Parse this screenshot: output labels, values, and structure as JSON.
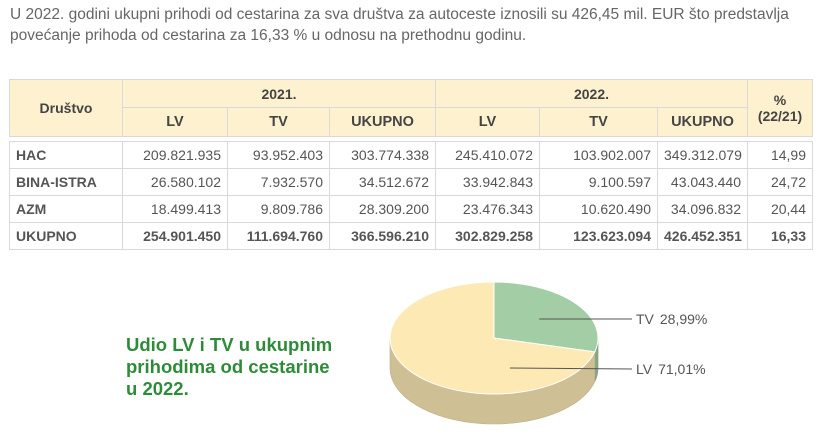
{
  "intro": {
    "line1": "U 2022. godini ukupni prihodi od cestarina za sva društva za autoceste iznosili su 426,45 mil. EUR što predstavlja",
    "line2": "povećanje prihoda od cestarina za 16,33 % u odnosu na prethodnu godinu."
  },
  "table": {
    "firm_header": "Društvo",
    "year_2021": "2021.",
    "year_2022": "2022.",
    "pct_header_line1": "%",
    "pct_header_line2": "(22/21)",
    "sub_headers": [
      "LV",
      "TV",
      "UKUPNO",
      "LV",
      "TV",
      "UKUPNO"
    ],
    "rows": [
      {
        "name": "HAC",
        "lv2021": "209.821.935",
        "tv2021": "93.952.403",
        "uk2021": "303.774.338",
        "lv2022": "245.410.072",
        "tv2022": "103.902.007",
        "uk2022": "349.312.079",
        "pct": "14,99"
      },
      {
        "name": "BINA-ISTRA",
        "lv2021": "26.580.102",
        "tv2021": "7.932.570",
        "uk2021": "34.512.672",
        "lv2022": "33.942.843",
        "tv2022": "9.100.597",
        "uk2022": "43.043.440",
        "pct": "24,72"
      },
      {
        "name": "AZM",
        "lv2021": "18.499.413",
        "tv2021": "9.809.786",
        "uk2021": "28.309.200",
        "lv2022": "23.476.343",
        "tv2022": "10.620.490",
        "uk2022": "34.096.832",
        "pct": "20,44"
      },
      {
        "name": "UKUPNO",
        "lv2021": "254.901.450",
        "tv2021": "111.694.760",
        "uk2021": "366.596.210",
        "lv2022": "302.829.258",
        "tv2022": "123.623.094",
        "uk2022": "426.452.351",
        "pct": "16,33"
      }
    ]
  },
  "pie_title": {
    "line1": "Udio LV i TV u ukupnim",
    "line2": "prihodima od cestarine",
    "line3": "u 2022."
  },
  "chart_data": {
    "type": "pie",
    "title": "Udio LV i TV u ukupnim prihodima od cestarine u 2022.",
    "slices": [
      {
        "label": "TV",
        "value_text": "28,99%",
        "value": 28.99,
        "color": "#a3cda4"
      },
      {
        "label": "LV",
        "value_text": "71,01%",
        "value": 71.01,
        "color": "#fce9b4"
      }
    ]
  }
}
